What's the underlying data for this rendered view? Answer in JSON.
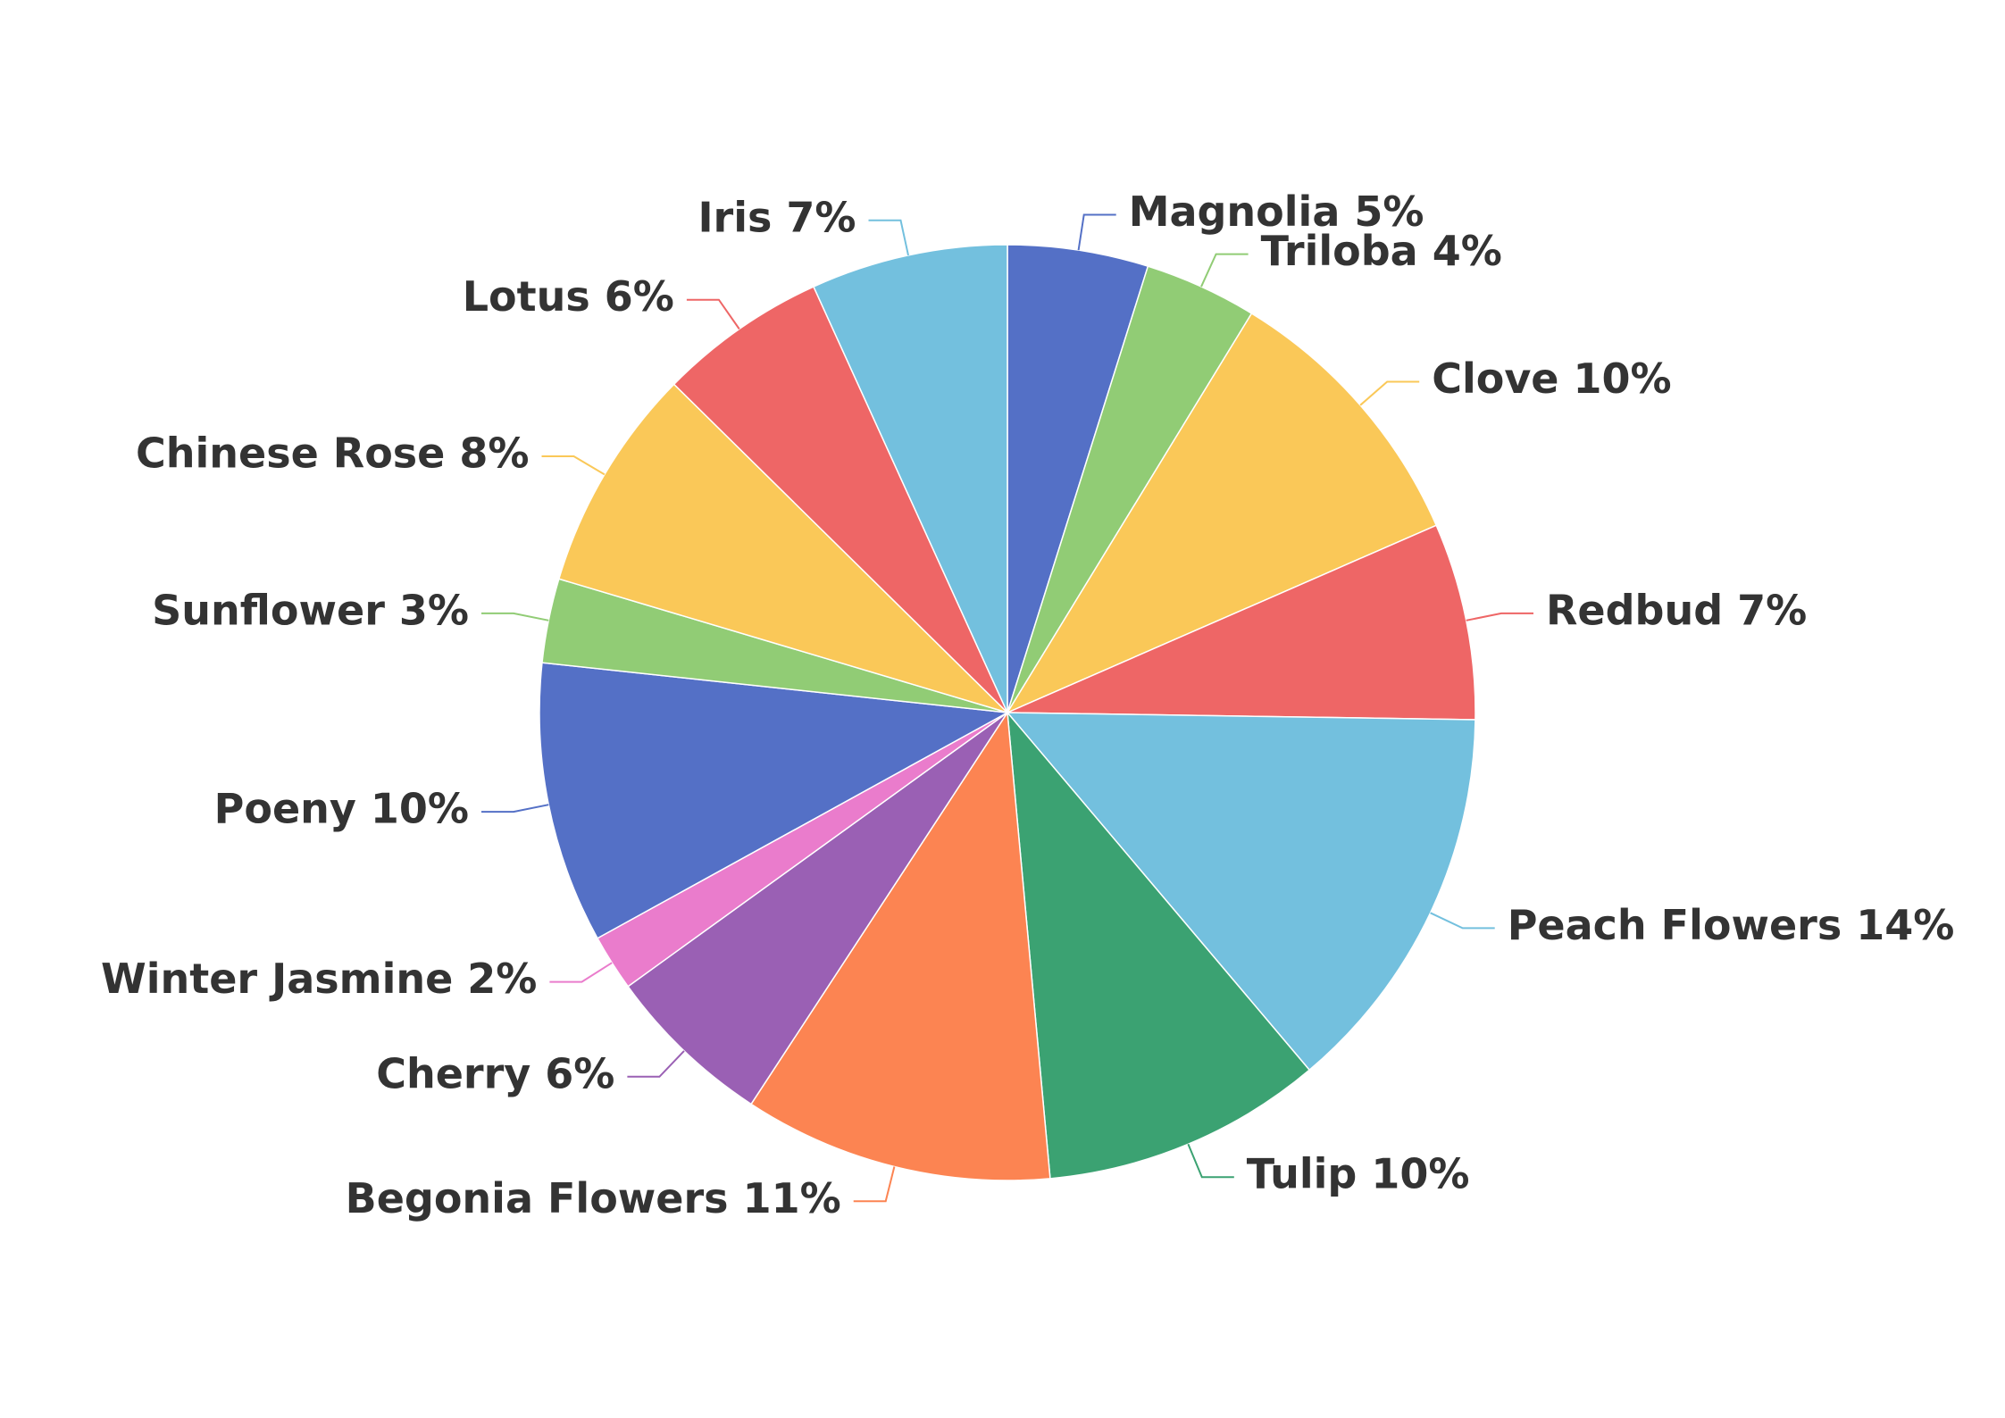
{
  "chart_data": {
    "type": "pie",
    "title": "",
    "start_angle_deg": 0,
    "direction": "clockwise",
    "label_format": "{name} {value}%",
    "legend": "none",
    "slices": [
      {
        "name": "Magnolia",
        "value": 5,
        "color": "#5470c6"
      },
      {
        "name": "Triloba",
        "value": 4,
        "color": "#91cc75"
      },
      {
        "name": "Clove",
        "value": 10,
        "color": "#fac858"
      },
      {
        "name": "Redbud",
        "value": 7,
        "color": "#ee6666"
      },
      {
        "name": "Peach Flowers",
        "value": 14,
        "color": "#73c0de"
      },
      {
        "name": "Tulip",
        "value": 10,
        "color": "#3ba272"
      },
      {
        "name": "Begonia Flowers",
        "value": 11,
        "color": "#fc8452"
      },
      {
        "name": "Cherry",
        "value": 6,
        "color": "#9a60b4"
      },
      {
        "name": "Winter Jasmine",
        "value": 2,
        "color": "#ea7ccc"
      },
      {
        "name": "Poeny",
        "value": 10,
        "color": "#5470c6"
      },
      {
        "name": "Sunflower",
        "value": 3,
        "color": "#91cc75"
      },
      {
        "name": "Chinese Rose",
        "value": 8,
        "color": "#fac858"
      },
      {
        "name": "Lotus",
        "value": 6,
        "color": "#ee6666"
      },
      {
        "name": "Iris",
        "value": 7,
        "color": "#73c0de"
      }
    ]
  }
}
